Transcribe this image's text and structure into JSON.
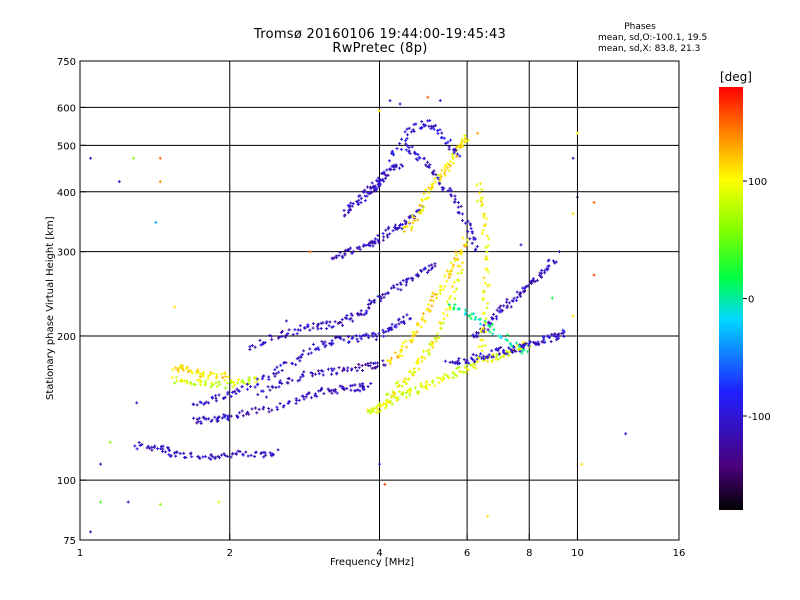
{
  "header": {
    "title_line1": "Tromsø 20160106 19:44:00-19:45:43",
    "title_line2": "RwPretec (8p)"
  },
  "phases_box": {
    "title": "Phases",
    "line_o": "mean, sd,O:-100.1, 19.5",
    "line_x": "mean, sd,X:  83.8, 21.3"
  },
  "colorbar": {
    "unit": "[deg]",
    "ticks": [
      "100",
      "0",
      "-100"
    ],
    "tick_values": [
      100,
      0,
      -100
    ],
    "range": [
      -180,
      180
    ]
  },
  "chart_data": {
    "type": "scatter",
    "title": "Tromsø 20160106 19:44:00-19:45:43",
    "subtitle": "RwPretec (8p)",
    "xlabel": "Frequency [MHz]",
    "ylabel": "Stationary phase Virtual Height [km]",
    "x_scale": "log",
    "y_scale": "log",
    "xlim": [
      1,
      16
    ],
    "ylim": [
      75,
      750
    ],
    "x_ticks": [
      1,
      2,
      4,
      6,
      8,
      10,
      16
    ],
    "x_tick_labels": [
      "1",
      "2",
      "4",
      "6",
      "8",
      "10",
      "16"
    ],
    "y_ticks": [
      75,
      100,
      200,
      300,
      400,
      500,
      600,
      750
    ],
    "y_tick_labels": [
      "75",
      "100",
      "200",
      "300",
      "400",
      "500",
      "600",
      "750"
    ],
    "grid": true,
    "color_by": "phase (deg)",
    "traces": [
      {
        "freq_mhz": [
          1.55,
          1.8,
          2.0,
          2.3,
          2.5
        ],
        "height_km": [
          113,
          112,
          113,
          113,
          115
        ],
        "phase_deg": -110
      },
      {
        "freq_mhz": [
          1.3,
          1.45,
          1.55
        ],
        "height_km": [
          118,
          117,
          113
        ],
        "phase_deg": -110
      },
      {
        "freq_mhz": [
          1.7,
          1.85,
          2.0,
          2.3,
          2.7,
          3.0,
          3.3,
          3.6,
          3.8
        ],
        "height_km": [
          133,
          134,
          136,
          140,
          146,
          152,
          155,
          156,
          157
        ],
        "phase_deg": -110
      },
      {
        "freq_mhz": [
          2.3,
          2.6,
          3.0,
          3.4,
          3.8,
          4.1
        ],
        "height_km": [
          150,
          162,
          168,
          170,
          173,
          176
        ],
        "phase_deg": -115
      },
      {
        "freq_mhz": [
          1.55,
          1.7,
          1.9,
          2.1,
          2.3
        ],
        "height_km": [
          162,
          160,
          158,
          160,
          163
        ],
        "phase_deg": 85
      },
      {
        "freq_mhz": [
          1.55,
          1.65,
          1.8,
          2.0
        ],
        "height_km": [
          172,
          170,
          165,
          165
        ],
        "phase_deg": 110
      },
      {
        "freq_mhz": [
          1.7,
          1.9,
          2.1,
          2.4,
          2.7,
          3.0,
          3.3,
          3.6,
          4.0,
          4.3,
          4.6
        ],
        "height_km": [
          143,
          148,
          155,
          165,
          178,
          190,
          196,
          198,
          200,
          210,
          220
        ],
        "phase_deg": -105
      },
      {
        "freq_mhz": [
          2.2,
          2.5,
          2.8,
          3.1,
          3.4,
          3.7,
          4.0,
          4.4,
          4.8,
          5.2
        ],
        "height_km": [
          190,
          200,
          208,
          210,
          215,
          225,
          240,
          255,
          270,
          285
        ],
        "phase_deg": -110
      },
      {
        "freq_mhz": [
          3.2,
          3.5,
          3.8,
          4.0,
          4.3,
          4.6,
          4.9
        ],
        "height_km": [
          290,
          300,
          310,
          320,
          335,
          350,
          370
        ],
        "phase_deg": -110
      },
      {
        "freq_mhz": [
          3.4,
          3.6,
          3.8,
          3.9,
          4.0,
          4.2,
          4.4
        ],
        "height_km": [
          360,
          380,
          400,
          410,
          420,
          440,
          460
        ],
        "phase_deg": -110
      },
      {
        "freq_mhz": [
          4.5,
          4.8,
          5.2,
          5.6,
          6.0,
          6.3
        ],
        "height_km": [
          500,
          470,
          430,
          390,
          340,
          300
        ],
        "phase_deg": -105
      },
      {
        "freq_mhz": [
          3.8,
          4.0,
          4.3,
          4.6,
          5.0,
          5.5,
          6.0,
          6.5,
          7.0,
          7.5,
          8.0
        ],
        "height_km": [
          138,
          142,
          148,
          152,
          158,
          165,
          172,
          178,
          182,
          188,
          192
        ],
        "phase_deg": 90
      },
      {
        "freq_mhz": [
          4.1,
          4.4,
          4.7,
          5.0,
          5.3,
          5.6,
          5.9
        ],
        "height_km": [
          145,
          158,
          170,
          185,
          205,
          240,
          290
        ],
        "phase_deg": 95
      },
      {
        "freq_mhz": [
          4.2,
          4.5,
          4.8,
          5.1,
          5.4,
          5.7,
          6.0
        ],
        "height_km": [
          175,
          190,
          210,
          235,
          260,
          290,
          320
        ],
        "phase_deg": 110
      },
      {
        "freq_mhz": [
          4.5,
          4.8,
          5.0,
          5.3,
          5.6,
          5.8,
          6.0
        ],
        "height_km": [
          330,
          360,
          400,
          430,
          470,
          500,
          520
        ],
        "phase_deg": 105
      },
      {
        "freq_mhz": [
          5.5,
          6.0,
          6.5,
          7.0,
          7.5,
          8.0,
          8.5,
          9.0,
          9.5
        ],
        "height_km": [
          175,
          178,
          182,
          186,
          188,
          192,
          196,
          200,
          205
        ],
        "phase_deg": -105
      },
      {
        "freq_mhz": [
          6.2,
          6.6,
          7.0,
          7.5,
          8.0,
          8.5,
          9.0
        ],
        "height_km": [
          200,
          210,
          225,
          240,
          255,
          270,
          290
        ],
        "phase_deg": -110
      },
      {
        "freq_mhz": [
          6.4,
          6.5,
          6.6,
          6.5,
          6.3
        ],
        "height_km": [
          180,
          220,
          280,
          350,
          420
        ],
        "phase_deg": 100
      },
      {
        "freq_mhz": [
          4.2,
          4.6,
          5.0,
          5.4,
          5.8
        ],
        "height_km": [
          470,
          540,
          560,
          520,
          470
        ],
        "phase_deg": -100
      },
      {
        "freq_mhz": [
          5.6,
          6.2,
          7.0,
          8.0
        ],
        "height_km": [
          230,
          220,
          200,
          185
        ],
        "phase_deg": 0
      }
    ],
    "scattered_points": [
      {
        "x": 1.05,
        "y": 78,
        "phase_deg": -110
      },
      {
        "x": 1.1,
        "y": 90,
        "phase_deg": 40
      },
      {
        "x": 1.25,
        "y": 90,
        "phase_deg": -110
      },
      {
        "x": 1.45,
        "y": 89,
        "phase_deg": 60
      },
      {
        "x": 1.9,
        "y": 90,
        "phase_deg": 90
      },
      {
        "x": 1.05,
        "y": 470,
        "phase_deg": -110
      },
      {
        "x": 1.2,
        "y": 420,
        "phase_deg": -110
      },
      {
        "x": 1.28,
        "y": 470,
        "phase_deg": 60
      },
      {
        "x": 1.45,
        "y": 470,
        "phase_deg": 150
      },
      {
        "x": 1.45,
        "y": 420,
        "phase_deg": 140
      },
      {
        "x": 1.42,
        "y": 345,
        "phase_deg": -30
      },
      {
        "x": 1.1,
        "y": 108,
        "phase_deg": -110
      },
      {
        "x": 1.15,
        "y": 120,
        "phase_deg": 60
      },
      {
        "x": 1.3,
        "y": 145,
        "phase_deg": -110
      },
      {
        "x": 4.1,
        "y": 98,
        "phase_deg": 160
      },
      {
        "x": 4.0,
        "y": 108,
        "phase_deg": -110
      },
      {
        "x": 6.6,
        "y": 84,
        "phase_deg": 110
      },
      {
        "x": 10.0,
        "y": 530,
        "phase_deg": 100
      },
      {
        "x": 9.8,
        "y": 470,
        "phase_deg": -110
      },
      {
        "x": 10.0,
        "y": 390,
        "phase_deg": -160
      },
      {
        "x": 10.8,
        "y": 380,
        "phase_deg": 150
      },
      {
        "x": 10.8,
        "y": 268,
        "phase_deg": 160
      },
      {
        "x": 12.5,
        "y": 125,
        "phase_deg": -100
      },
      {
        "x": 9.8,
        "y": 360,
        "phase_deg": 110
      },
      {
        "x": 10.2,
        "y": 108,
        "phase_deg": 110
      },
      {
        "x": 9.8,
        "y": 220,
        "phase_deg": 110
      },
      {
        "x": 4.2,
        "y": 620,
        "phase_deg": -110
      },
      {
        "x": 4.4,
        "y": 610,
        "phase_deg": -120
      },
      {
        "x": 4.0,
        "y": 590,
        "phase_deg": 110
      },
      {
        "x": 5.0,
        "y": 630,
        "phase_deg": 150
      },
      {
        "x": 5.3,
        "y": 620,
        "phase_deg": -110
      },
      {
        "x": 6.3,
        "y": 530,
        "phase_deg": 130
      },
      {
        "x": 2.9,
        "y": 300,
        "phase_deg": 150
      },
      {
        "x": 2.6,
        "y": 215,
        "phase_deg": -110
      },
      {
        "x": 1.55,
        "y": 230,
        "phase_deg": 110
      },
      {
        "x": 8.9,
        "y": 240,
        "phase_deg": 20
      },
      {
        "x": 7.7,
        "y": 310,
        "phase_deg": -110
      },
      {
        "x": 9.2,
        "y": 300,
        "phase_deg": -120
      }
    ]
  }
}
